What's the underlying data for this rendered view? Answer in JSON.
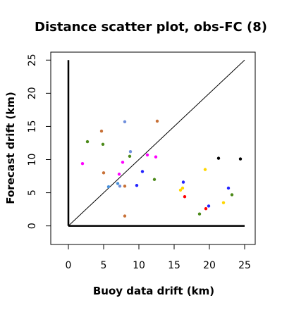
{
  "chart_data": {
    "type": "scatter",
    "title": "Distance scatter plot, obs-FC (8)",
    "xlabel": "Buoy data drift (km)",
    "ylabel": "Forecast drift (km)",
    "xlim": [
      -2.5,
      26.5
    ],
    "ylim": [
      -2.8,
      26.2
    ],
    "xticks": [
      "0",
      "5",
      "10",
      "15",
      "20",
      "25"
    ],
    "yticks": [
      "0",
      "5",
      "10",
      "15",
      "20",
      "25"
    ],
    "grid": false,
    "legend": "none",
    "reference_axes": {
      "x_max": 25,
      "y_max": 25
    },
    "diagonal": {
      "from": [
        0,
        0
      ],
      "to": [
        25,
        25
      ]
    },
    "points": [
      {
        "x": 2.0,
        "y": 9.4,
        "color": "#ff00ff"
      },
      {
        "x": 2.7,
        "y": 12.7,
        "color": "#4c8a1a"
      },
      {
        "x": 4.7,
        "y": 14.3,
        "color": "#c87137"
      },
      {
        "x": 4.9,
        "y": 12.3,
        "color": "#4c8a1a"
      },
      {
        "x": 5.0,
        "y": 8.0,
        "color": "#c87137"
      },
      {
        "x": 5.7,
        "y": 5.9,
        "color": "#4a90d9"
      },
      {
        "x": 7.0,
        "y": 6.4,
        "color": "#4a90d9"
      },
      {
        "x": 7.2,
        "y": 7.8,
        "color": "#ff00ff"
      },
      {
        "x": 7.3,
        "y": 6.0,
        "color": "#6f8fdc"
      },
      {
        "x": 7.7,
        "y": 9.6,
        "color": "#ff00ff"
      },
      {
        "x": 8.0,
        "y": 15.7,
        "color": "#6f8fdc"
      },
      {
        "x": 8.0,
        "y": 6.0,
        "color": "#c87137"
      },
      {
        "x": 8.0,
        "y": 1.5,
        "color": "#c87137"
      },
      {
        "x": 8.7,
        "y": 10.5,
        "color": "#4c8a1a"
      },
      {
        "x": 8.8,
        "y": 11.2,
        "color": "#6f8fdc"
      },
      {
        "x": 9.7,
        "y": 6.1,
        "color": "#2222ff"
      },
      {
        "x": 10.5,
        "y": 8.2,
        "color": "#2222ff"
      },
      {
        "x": 11.2,
        "y": 10.7,
        "color": "#ff00ff"
      },
      {
        "x": 12.2,
        "y": 7.0,
        "color": "#4c8a1a"
      },
      {
        "x": 12.4,
        "y": 10.4,
        "color": "#ff00ff"
      },
      {
        "x": 12.6,
        "y": 15.8,
        "color": "#c87137"
      },
      {
        "x": 15.9,
        "y": 5.4,
        "color": "#ffd700"
      },
      {
        "x": 16.2,
        "y": 5.7,
        "color": "#ffd700"
      },
      {
        "x": 16.3,
        "y": 6.6,
        "color": "#2222ff"
      },
      {
        "x": 16.5,
        "y": 4.4,
        "color": "#ff0000"
      },
      {
        "x": 18.6,
        "y": 1.8,
        "color": "#4c8a1a"
      },
      {
        "x": 19.4,
        "y": 8.5,
        "color": "#ffd700"
      },
      {
        "x": 19.5,
        "y": 2.6,
        "color": "#ff0000"
      },
      {
        "x": 19.9,
        "y": 3.0,
        "color": "#2222ff"
      },
      {
        "x": 21.3,
        "y": 10.2,
        "color": "#000000"
      },
      {
        "x": 22.0,
        "y": 3.5,
        "color": "#ffd700"
      },
      {
        "x": 22.7,
        "y": 5.7,
        "color": "#2222ff"
      },
      {
        "x": 23.2,
        "y": 4.7,
        "color": "#4c8a1a"
      },
      {
        "x": 24.4,
        "y": 10.1,
        "color": "#000000"
      }
    ]
  }
}
